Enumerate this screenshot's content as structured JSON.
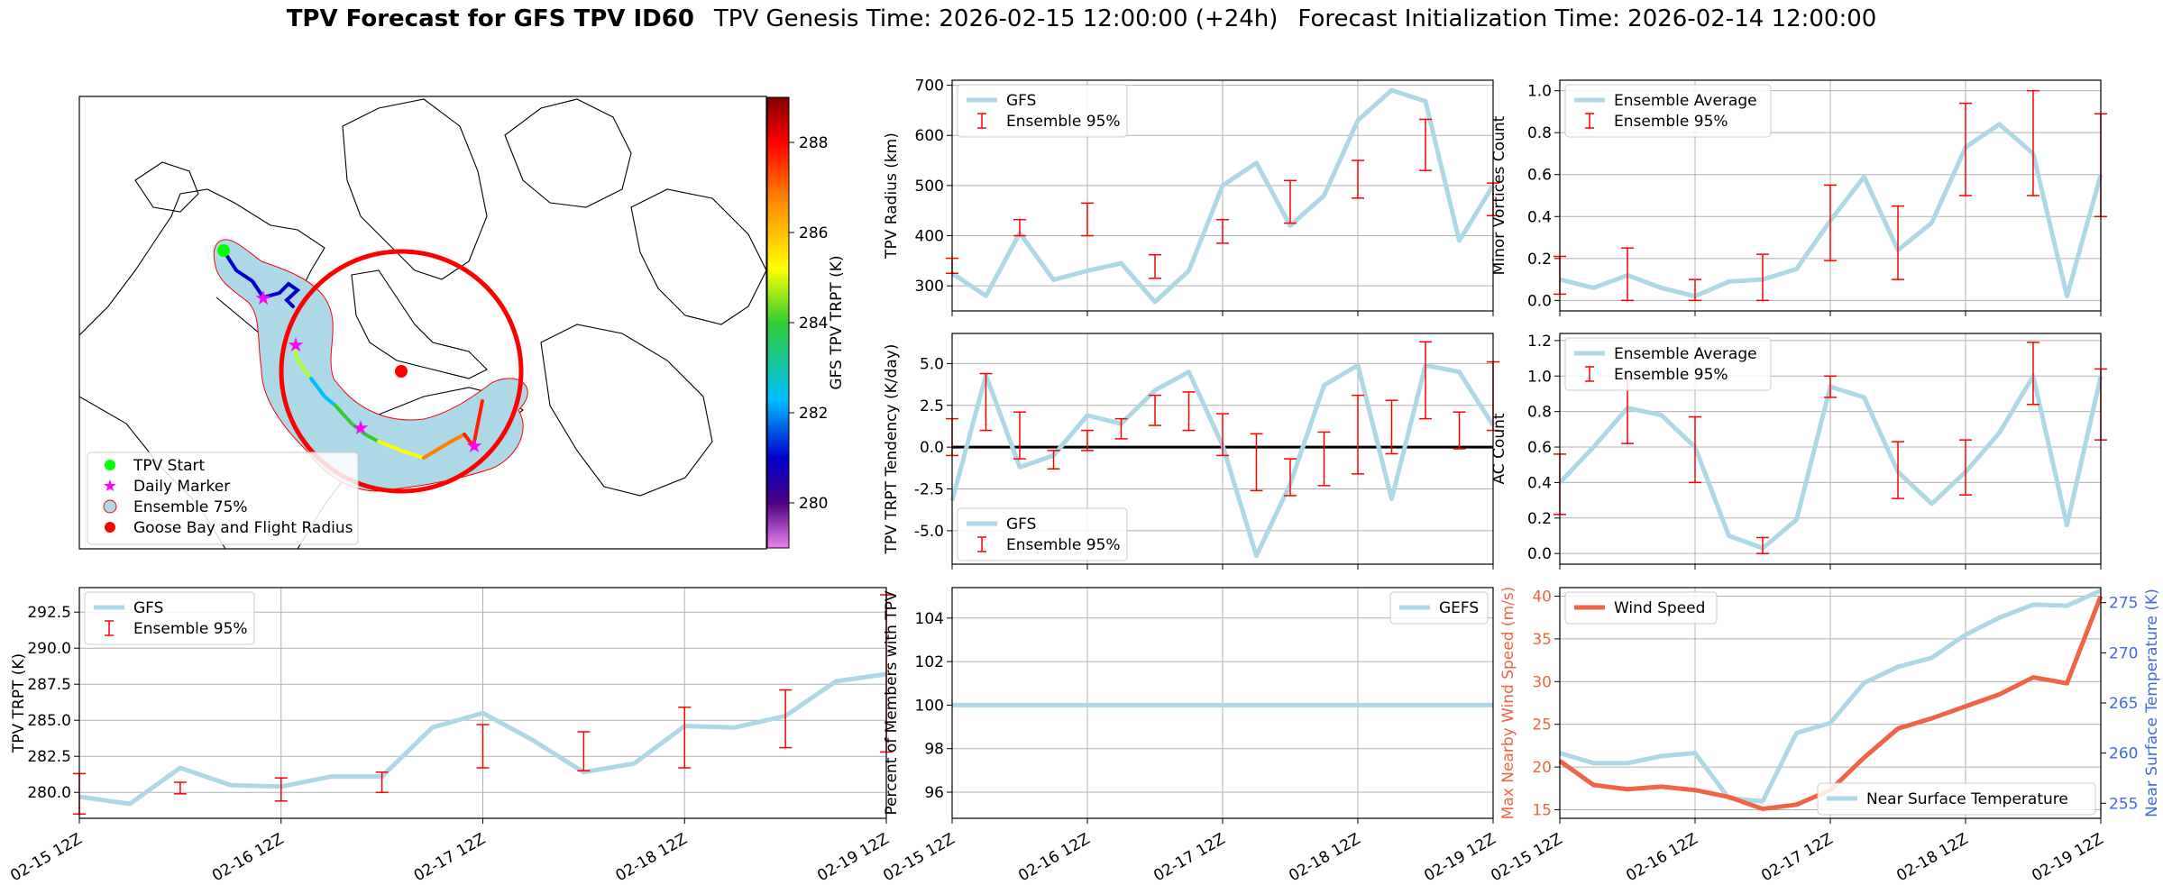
{
  "figure": {
    "title_bold": "TPV Forecast for GFS TPV ID60",
    "title_genesis": "TPV Genesis Time: 2026-02-15 12:00:00 (+24h)",
    "title_init": "Forecast Initialization Time: 2026-02-14 12:00:00"
  },
  "colors": {
    "gfs_line": "#add8e6",
    "error_bar": "#ff0000",
    "wind": "#f06446",
    "temp_axis": "#4169e1",
    "wind_axis": "#f06446"
  },
  "time_ticks": [
    "02-15 12Z",
    "02-16 12Z",
    "02-17 12Z",
    "02-18 12Z",
    "02-19 12Z"
  ],
  "map": {
    "colorbar_label": "GFS TPV TRPT (K)",
    "colorbar_ticks": [
      280,
      282,
      284,
      286,
      288
    ],
    "colorbar_range": [
      279,
      289
    ],
    "legend": [
      "TPV Start",
      "Daily Marker",
      "Ensemble 75%",
      "Goose Bay and Flight Radius"
    ]
  },
  "chart_data": [
    {
      "id": "radius",
      "type": "line",
      "ylabel": "TPV Radius (km)",
      "ylim": [
        250,
        710
      ],
      "yticks": [
        300,
        400,
        500,
        600,
        700
      ],
      "legend": [
        "GFS",
        "Ensemble 95%"
      ],
      "x": [
        0,
        1,
        2,
        3,
        4,
        5,
        6,
        7,
        8,
        9,
        10,
        11,
        12,
        13,
        14,
        15,
        16
      ],
      "values": [
        325,
        280,
        405,
        312,
        330,
        345,
        268,
        330,
        500,
        545,
        420,
        480,
        630,
        690,
        668,
        390,
        500
      ],
      "err_x": [
        0,
        2,
        4,
        6,
        8,
        10,
        12,
        14,
        16
      ],
      "err_low": [
        325,
        400,
        400,
        315,
        385,
        425,
        475,
        530,
        440
      ],
      "err_high": [
        355,
        432,
        465,
        362,
        432,
        510,
        550,
        632,
        505
      ]
    },
    {
      "id": "minor",
      "type": "line",
      "ylabel": "Minor Vortices Count",
      "ylim": [
        -0.05,
        1.05
      ],
      "yticks": [
        0.0,
        0.2,
        0.4,
        0.6,
        0.8,
        1.0
      ],
      "legend": [
        "Ensemble Average",
        "Ensemble 95%"
      ],
      "x": [
        0,
        1,
        2,
        3,
        4,
        5,
        6,
        7,
        8,
        9,
        10,
        11,
        12,
        13,
        14,
        15,
        16
      ],
      "values": [
        0.1,
        0.06,
        0.12,
        0.06,
        0.02,
        0.09,
        0.1,
        0.15,
        0.38,
        0.59,
        0.24,
        0.37,
        0.73,
        0.84,
        0.7,
        0.02,
        0.6
      ],
      "err_x": [
        0,
        2,
        4,
        6,
        8,
        10,
        12,
        14,
        16
      ],
      "err_low": [
        0.03,
        0.0,
        0.0,
        0.0,
        0.19,
        0.1,
        0.5,
        0.5,
        0.4
      ],
      "err_high": [
        0.21,
        0.25,
        0.1,
        0.22,
        0.55,
        0.45,
        0.94,
        1.0,
        0.89
      ]
    },
    {
      "id": "tendency",
      "type": "line",
      "ylabel": "TPV TRPT Tendency (K/day)",
      "ylim": [
        -7.0,
        6.8
      ],
      "yticks": [
        -5.0,
        -2.5,
        0.0,
        2.5,
        5.0
      ],
      "legend": [
        "GFS",
        "Ensemble 95%"
      ],
      "x": [
        0,
        1,
        2,
        3,
        4,
        5,
        6,
        7,
        8,
        9,
        10,
        11,
        12,
        13,
        14,
        15,
        16
      ],
      "values": [
        -3.2,
        4.3,
        -1.2,
        -0.5,
        1.9,
        1.4,
        3.4,
        4.5,
        0.1,
        -6.5,
        -2.2,
        3.7,
        4.9,
        -3.1,
        4.9,
        4.5,
        1.3
      ],
      "err_x": [
        0,
        1,
        2,
        3,
        4,
        5,
        6,
        7,
        8,
        9,
        10,
        11,
        12,
        13,
        14,
        15,
        16
      ],
      "err_low": [
        -0.5,
        1.0,
        -0.7,
        -1.3,
        -0.2,
        0.5,
        1.3,
        1.0,
        -0.5,
        -2.6,
        -2.9,
        -2.3,
        -1.6,
        -0.4,
        1.7,
        -0.1,
        1.0
      ],
      "err_high": [
        1.7,
        4.4,
        2.1,
        -0.2,
        1.0,
        1.7,
        3.1,
        3.3,
        2.0,
        0.8,
        -0.7,
        0.9,
        3.1,
        2.8,
        6.3,
        2.1,
        5.1
      ]
    },
    {
      "id": "ac",
      "type": "line",
      "ylabel": "AC Count",
      "ylim": [
        -0.06,
        1.24
      ],
      "yticks": [
        0.0,
        0.2,
        0.4,
        0.6,
        0.8,
        1.0,
        1.2
      ],
      "legend": [
        "Ensemble Average",
        "Ensemble 95%"
      ],
      "x": [
        0,
        1,
        2,
        3,
        4,
        5,
        6,
        7,
        8,
        9,
        10,
        11,
        12,
        13,
        14,
        15,
        16
      ],
      "values": [
        0.4,
        0.6,
        0.82,
        0.78,
        0.6,
        0.1,
        0.03,
        0.19,
        0.94,
        0.88,
        0.46,
        0.28,
        0.46,
        0.68,
        1.0,
        0.16,
        1.0
      ],
      "err_x": [
        0,
        2,
        4,
        6,
        8,
        10,
        12,
        14,
        16
      ],
      "err_low": [
        0.22,
        0.62,
        0.4,
        0.0,
        0.88,
        0.31,
        0.33,
        0.84,
        0.64
      ],
      "err_high": [
        0.56,
        1.0,
        0.77,
        0.09,
        1.0,
        0.63,
        0.64,
        1.19,
        1.04
      ]
    },
    {
      "id": "trpt",
      "type": "line",
      "ylabel": "TPV TRPT (K)",
      "ylim": [
        278.2,
        294.2
      ],
      "yticks": [
        280.0,
        282.5,
        285.0,
        287.5,
        290.0,
        292.5
      ],
      "legend": [
        "GFS",
        "Ensemble 95%"
      ],
      "x": [
        0,
        1,
        2,
        3,
        4,
        5,
        6,
        7,
        8,
        9,
        10,
        11,
        12,
        13,
        14,
        15,
        16
      ],
      "values": [
        279.7,
        279.2,
        281.7,
        280.5,
        280.4,
        281.1,
        281.1,
        284.5,
        285.5,
        283.6,
        281.4,
        282.0,
        284.6,
        284.5,
        285.3,
        287.7,
        288.2
      ],
      "err_x": [
        0,
        2,
        4,
        6,
        8,
        10,
        12,
        14,
        16
      ],
      "err_low": [
        278.5,
        279.9,
        279.4,
        280.0,
        281.7,
        281.5,
        281.7,
        283.1,
        282.8
      ],
      "err_high": [
        281.3,
        280.7,
        281.0,
        281.4,
        284.7,
        284.2,
        285.9,
        287.1,
        293.7
      ]
    },
    {
      "id": "members",
      "type": "line",
      "ylabel": "Percent of Members with TPV",
      "ylim": [
        94.8,
        105.4
      ],
      "yticks": [
        96,
        98,
        100,
        102,
        104
      ],
      "legend": [
        "GEFS"
      ],
      "x": [
        0,
        1,
        2,
        3,
        4,
        5,
        6,
        7,
        8,
        9,
        10,
        11,
        12,
        13,
        14,
        15,
        16
      ],
      "values": [
        100,
        100,
        100,
        100,
        100,
        100,
        100,
        100,
        100,
        100,
        100,
        100,
        100,
        100,
        100,
        100,
        100
      ]
    },
    {
      "id": "surface",
      "type": "line",
      "ylabel": "Max Nearby Wind Speed (m/s)",
      "ylabel_right": "Near Surface Temperature (K)",
      "ylim": [
        14,
        41
      ],
      "yticks": [
        15,
        20,
        25,
        30,
        35,
        40
      ],
      "ylim_right": [
        253.5,
        276.5
      ],
      "yticks_right": [
        255,
        260,
        265,
        270,
        275
      ],
      "legend": [
        "Wind Speed"
      ],
      "legend_right": [
        "Near Surface Temperature"
      ],
      "x": [
        0,
        1,
        2,
        3,
        4,
        5,
        6,
        7,
        8,
        9,
        10,
        11,
        12,
        13,
        14,
        15,
        16
      ],
      "series": [
        {
          "name": "Wind Speed",
          "values": [
            20.7,
            17.9,
            17.4,
            17.7,
            17.3,
            16.5,
            15.1,
            15.6,
            17.3,
            21.1,
            24.5,
            25.7,
            27.1,
            28.5,
            30.5,
            29.8,
            40.0
          ]
        },
        {
          "name": "Near Surface Temperature",
          "values": [
            260.0,
            259.0,
            259.0,
            259.7,
            260.0,
            255.5,
            255.2,
            262.0,
            263.0,
            267.0,
            268.6,
            269.5,
            271.8,
            273.5,
            274.8,
            274.7,
            276.2
          ]
        }
      ]
    }
  ]
}
